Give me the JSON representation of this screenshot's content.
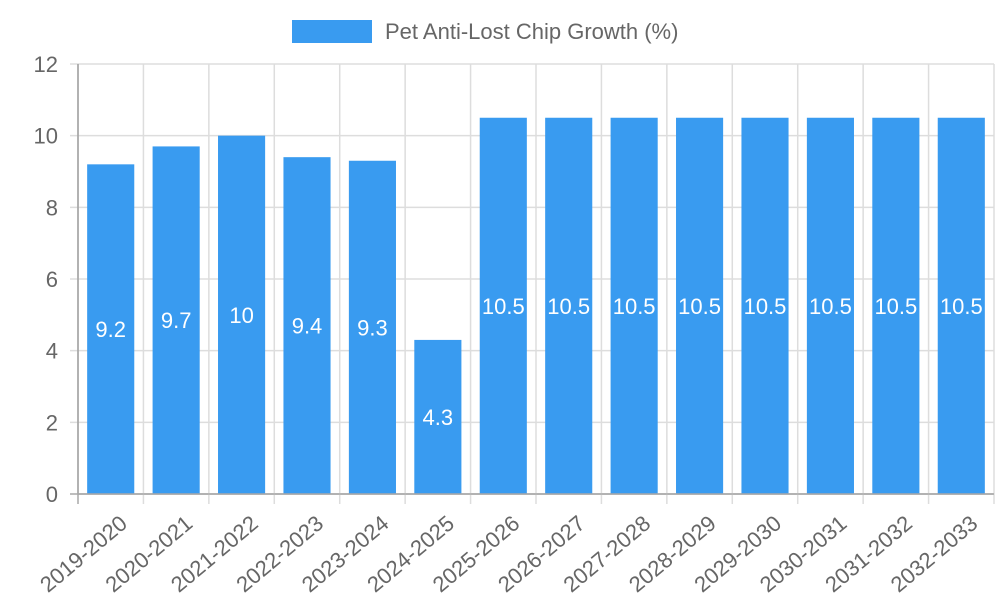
{
  "legend": {
    "label": "Pet Anti-Lost Chip Growth (%)",
    "color": "#399bf0"
  },
  "chart_data": {
    "type": "bar",
    "title": "",
    "xlabel": "",
    "ylabel": "",
    "ylim": [
      0,
      12
    ],
    "yticks": [
      0,
      2,
      4,
      6,
      8,
      10,
      12
    ],
    "grid": true,
    "legend_position": "top",
    "categories": [
      "2019-2020",
      "2020-2021",
      "2021-2022",
      "2022-2023",
      "2023-2024",
      "2024-2025",
      "2025-2026",
      "2026-2027",
      "2027-2028",
      "2028-2029",
      "2029-2030",
      "2030-2031",
      "2031-2032",
      "2032-2033"
    ],
    "series": [
      {
        "name": "Pet Anti-Lost Chip Growth (%)",
        "color": "#399bf0",
        "values": [
          9.2,
          9.7,
          10,
          9.4,
          9.3,
          4.3,
          10.5,
          10.5,
          10.5,
          10.5,
          10.5,
          10.5,
          10.5,
          10.5
        ]
      }
    ],
    "data_labels": [
      "9.2",
      "9.7",
      "10",
      "9.4",
      "9.3",
      "4.3",
      "10.5",
      "10.5",
      "10.5",
      "10.5",
      "10.5",
      "10.5",
      "10.5",
      "10.5"
    ]
  }
}
